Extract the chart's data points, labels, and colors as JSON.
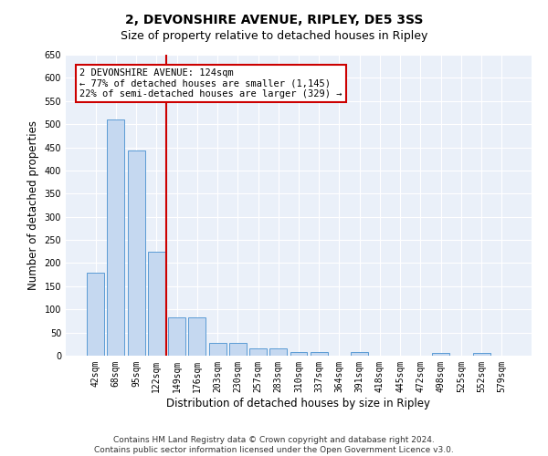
{
  "title": "2, DEVONSHIRE AVENUE, RIPLEY, DE5 3SS",
  "subtitle": "Size of property relative to detached houses in Ripley",
  "xlabel": "Distribution of detached houses by size in Ripley",
  "ylabel": "Number of detached properties",
  "categories": [
    "42sqm",
    "68sqm",
    "95sqm",
    "122sqm",
    "149sqm",
    "176sqm",
    "203sqm",
    "230sqm",
    "257sqm",
    "283sqm",
    "310sqm",
    "337sqm",
    "364sqm",
    "391sqm",
    "418sqm",
    "445sqm",
    "472sqm",
    "498sqm",
    "525sqm",
    "552sqm",
    "579sqm"
  ],
  "values": [
    180,
    510,
    443,
    225,
    83,
    83,
    28,
    28,
    15,
    15,
    8,
    8,
    0,
    8,
    0,
    0,
    0,
    5,
    0,
    5,
    0
  ],
  "bar_color": "#c5d8f0",
  "bar_edge_color": "#5b9bd5",
  "vline_x_index": 3,
  "vline_color": "#cc0000",
  "annotation_line1": "2 DEVONSHIRE AVENUE: 124sqm",
  "annotation_line2": "← 77% of detached houses are smaller (1,145)",
  "annotation_line3": "22% of semi-detached houses are larger (329) →",
  "annotation_box_color": "white",
  "annotation_box_edge_color": "#cc0000",
  "ylim": [
    0,
    650
  ],
  "yticks": [
    0,
    50,
    100,
    150,
    200,
    250,
    300,
    350,
    400,
    450,
    500,
    550,
    600,
    650
  ],
  "footer_line1": "Contains HM Land Registry data © Crown copyright and database right 2024.",
  "footer_line2": "Contains public sector information licensed under the Open Government Licence v3.0.",
  "bg_color": "#eaf0f9",
  "grid_color": "white",
  "title_fontsize": 10,
  "subtitle_fontsize": 9,
  "tick_fontsize": 7,
  "label_fontsize": 8.5,
  "footer_fontsize": 6.5,
  "annotation_fontsize": 7.5
}
